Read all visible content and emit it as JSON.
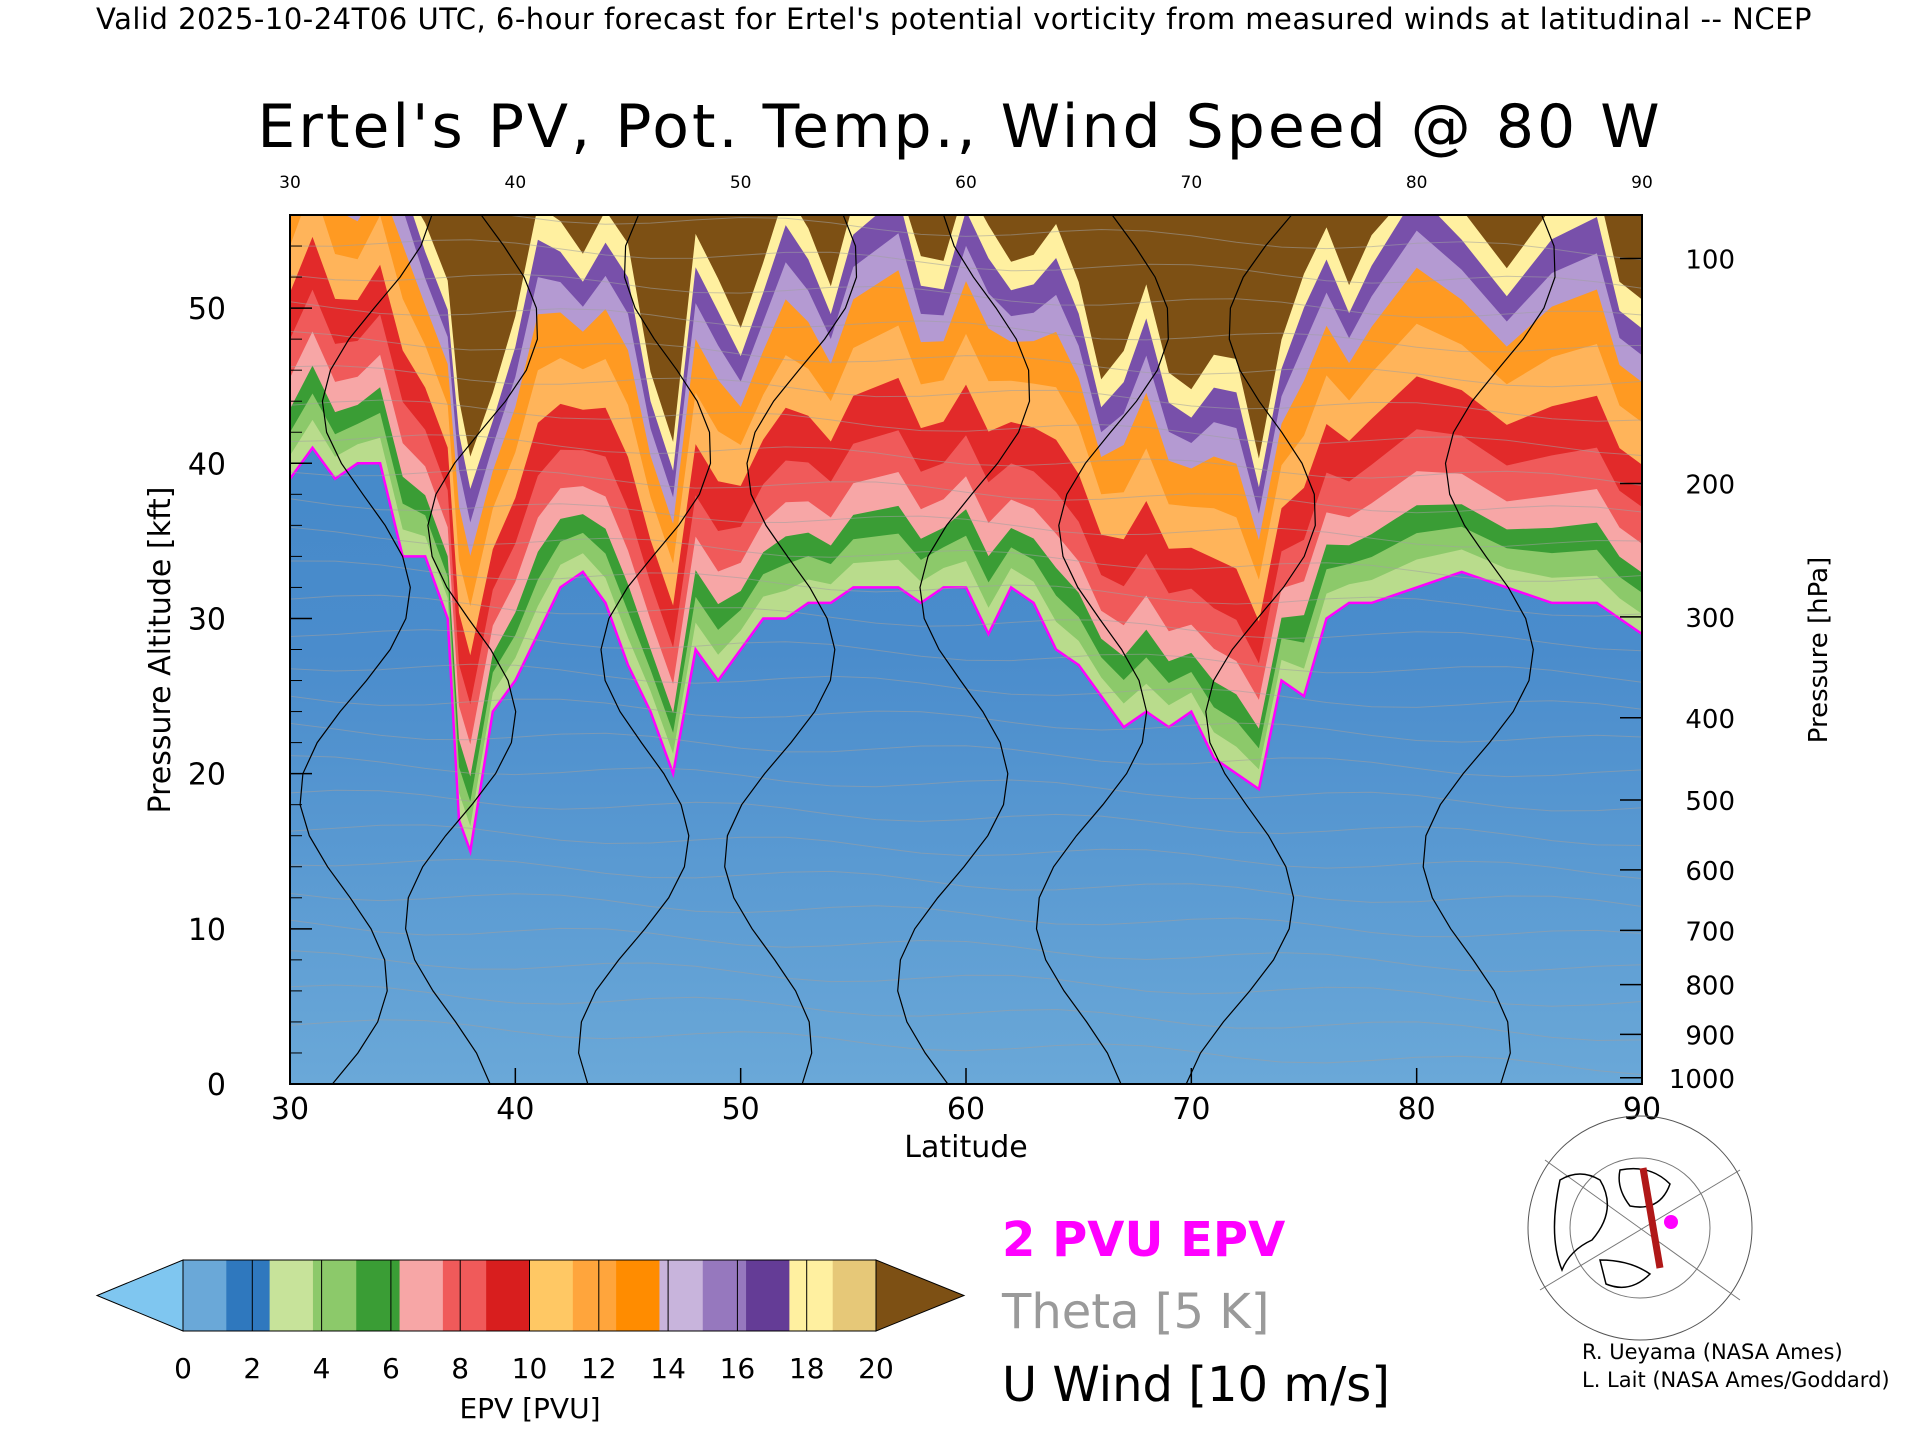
{
  "header": "Valid 2025-10-24T06 UTC, 6-hour forecast for Ertel's potential vorticity from measured winds at latitudinal -- NCEP",
  "chart_data": {
    "type": "heatmap",
    "title": "Ertel's PV, Pot. Temp., Wind Speed @ 80 W",
    "xlabel": "Latitude",
    "ylabel": "Pressure Altitude [kft]",
    "ylabel_right": "Pressure [hPa]",
    "xlim": [
      30,
      90
    ],
    "ylim": [
      0,
      56
    ],
    "x_ticks": [
      30,
      40,
      50,
      60,
      70,
      80,
      90
    ],
    "y_ticks": [
      0,
      10,
      20,
      30,
      40,
      50
    ],
    "pressure_ticks": [
      {
        "label": "100",
        "kft": 53.2
      },
      {
        "label": "200",
        "kft": 38.7
      },
      {
        "label": "300",
        "kft": 30.1
      },
      {
        "label": "400",
        "kft": 23.6
      },
      {
        "label": "500",
        "kft": 18.3
      },
      {
        "label": "600",
        "kft": 13.8
      },
      {
        "label": "700",
        "kft": 9.9
      },
      {
        "label": "800",
        "kft": 6.4
      },
      {
        "label": "900",
        "kft": 3.2
      },
      {
        "label": "1000",
        "kft": 0.4
      }
    ],
    "pv_2pvu_height_kft": [
      {
        "lat": 30,
        "kft": 39
      },
      {
        "lat": 31,
        "kft": 41
      },
      {
        "lat": 32,
        "kft": 39
      },
      {
        "lat": 33,
        "kft": 40
      },
      {
        "lat": 34,
        "kft": 40
      },
      {
        "lat": 35,
        "kft": 34
      },
      {
        "lat": 36,
        "kft": 34
      },
      {
        "lat": 37,
        "kft": 30
      },
      {
        "lat": 37.5,
        "kft": 17
      },
      {
        "lat": 38,
        "kft": 15
      },
      {
        "lat": 39,
        "kft": 24
      },
      {
        "lat": 40,
        "kft": 26
      },
      {
        "lat": 41,
        "kft": 29
      },
      {
        "lat": 42,
        "kft": 32
      },
      {
        "lat": 43,
        "kft": 33
      },
      {
        "lat": 44,
        "kft": 31
      },
      {
        "lat": 45,
        "kft": 27
      },
      {
        "lat": 46,
        "kft": 24
      },
      {
        "lat": 47,
        "kft": 20
      },
      {
        "lat": 48,
        "kft": 28
      },
      {
        "lat": 49,
        "kft": 26
      },
      {
        "lat": 50,
        "kft": 28
      },
      {
        "lat": 51,
        "kft": 30
      },
      {
        "lat": 52,
        "kft": 30
      },
      {
        "lat": 53,
        "kft": 31
      },
      {
        "lat": 54,
        "kft": 31
      },
      {
        "lat": 55,
        "kft": 32
      },
      {
        "lat": 57,
        "kft": 32
      },
      {
        "lat": 58,
        "kft": 31
      },
      {
        "lat": 59,
        "kft": 32
      },
      {
        "lat": 60,
        "kft": 32
      },
      {
        "lat": 61,
        "kft": 29
      },
      {
        "lat": 62,
        "kft": 32
      },
      {
        "lat": 63,
        "kft": 31
      },
      {
        "lat": 64,
        "kft": 28
      },
      {
        "lat": 65,
        "kft": 27
      },
      {
        "lat": 66,
        "kft": 25
      },
      {
        "lat": 67,
        "kft": 23
      },
      {
        "lat": 68,
        "kft": 24
      },
      {
        "lat": 69,
        "kft": 23
      },
      {
        "lat": 70,
        "kft": 24
      },
      {
        "lat": 71,
        "kft": 21
      },
      {
        "lat": 72,
        "kft": 20
      },
      {
        "lat": 73,
        "kft": 19
      },
      {
        "lat": 74,
        "kft": 26
      },
      {
        "lat": 75,
        "kft": 25
      },
      {
        "lat": 76,
        "kft": 30
      },
      {
        "lat": 77,
        "kft": 31
      },
      {
        "lat": 78,
        "kft": 31
      },
      {
        "lat": 80,
        "kft": 32
      },
      {
        "lat": 82,
        "kft": 33
      },
      {
        "lat": 84,
        "kft": 32
      },
      {
        "lat": 86,
        "kft": 31
      },
      {
        "lat": 88,
        "kft": 31
      },
      {
        "lat": 89,
        "kft": 30
      },
      {
        "lat": 90,
        "kft": 29
      }
    ],
    "colorbar": {
      "label": "EPV [PVU]",
      "tick_labels": [
        "0",
        "2",
        "4",
        "6",
        "8",
        "10",
        "12",
        "14",
        "16",
        "18",
        "20"
      ],
      "colors": [
        "#7fc6f0",
        "#6aa8d8",
        "#2f78be",
        "#c7e39a",
        "#8cc96a",
        "#3a9d35",
        "#f7a6a6",
        "#f05a5a",
        "#d81e1e",
        "#ffc864",
        "#ffa53c",
        "#ff8c00",
        "#c8b4dc",
        "#9678be",
        "#643c96",
        "#fff0a0",
        "#e6c878",
        "#7d5014"
      ]
    },
    "legend": [
      {
        "label": "2 PVU EPV",
        "color": "#ff00ff"
      },
      {
        "label": "Theta [5 K]",
        "color": "#9a9a9a"
      },
      {
        "label": "U Wind [10 m/s]",
        "color": "#000000"
      }
    ]
  },
  "credits": [
    "R. Ueyama (NASA Ames)",
    "L. Lait (NASA Ames/Goddard)"
  ]
}
